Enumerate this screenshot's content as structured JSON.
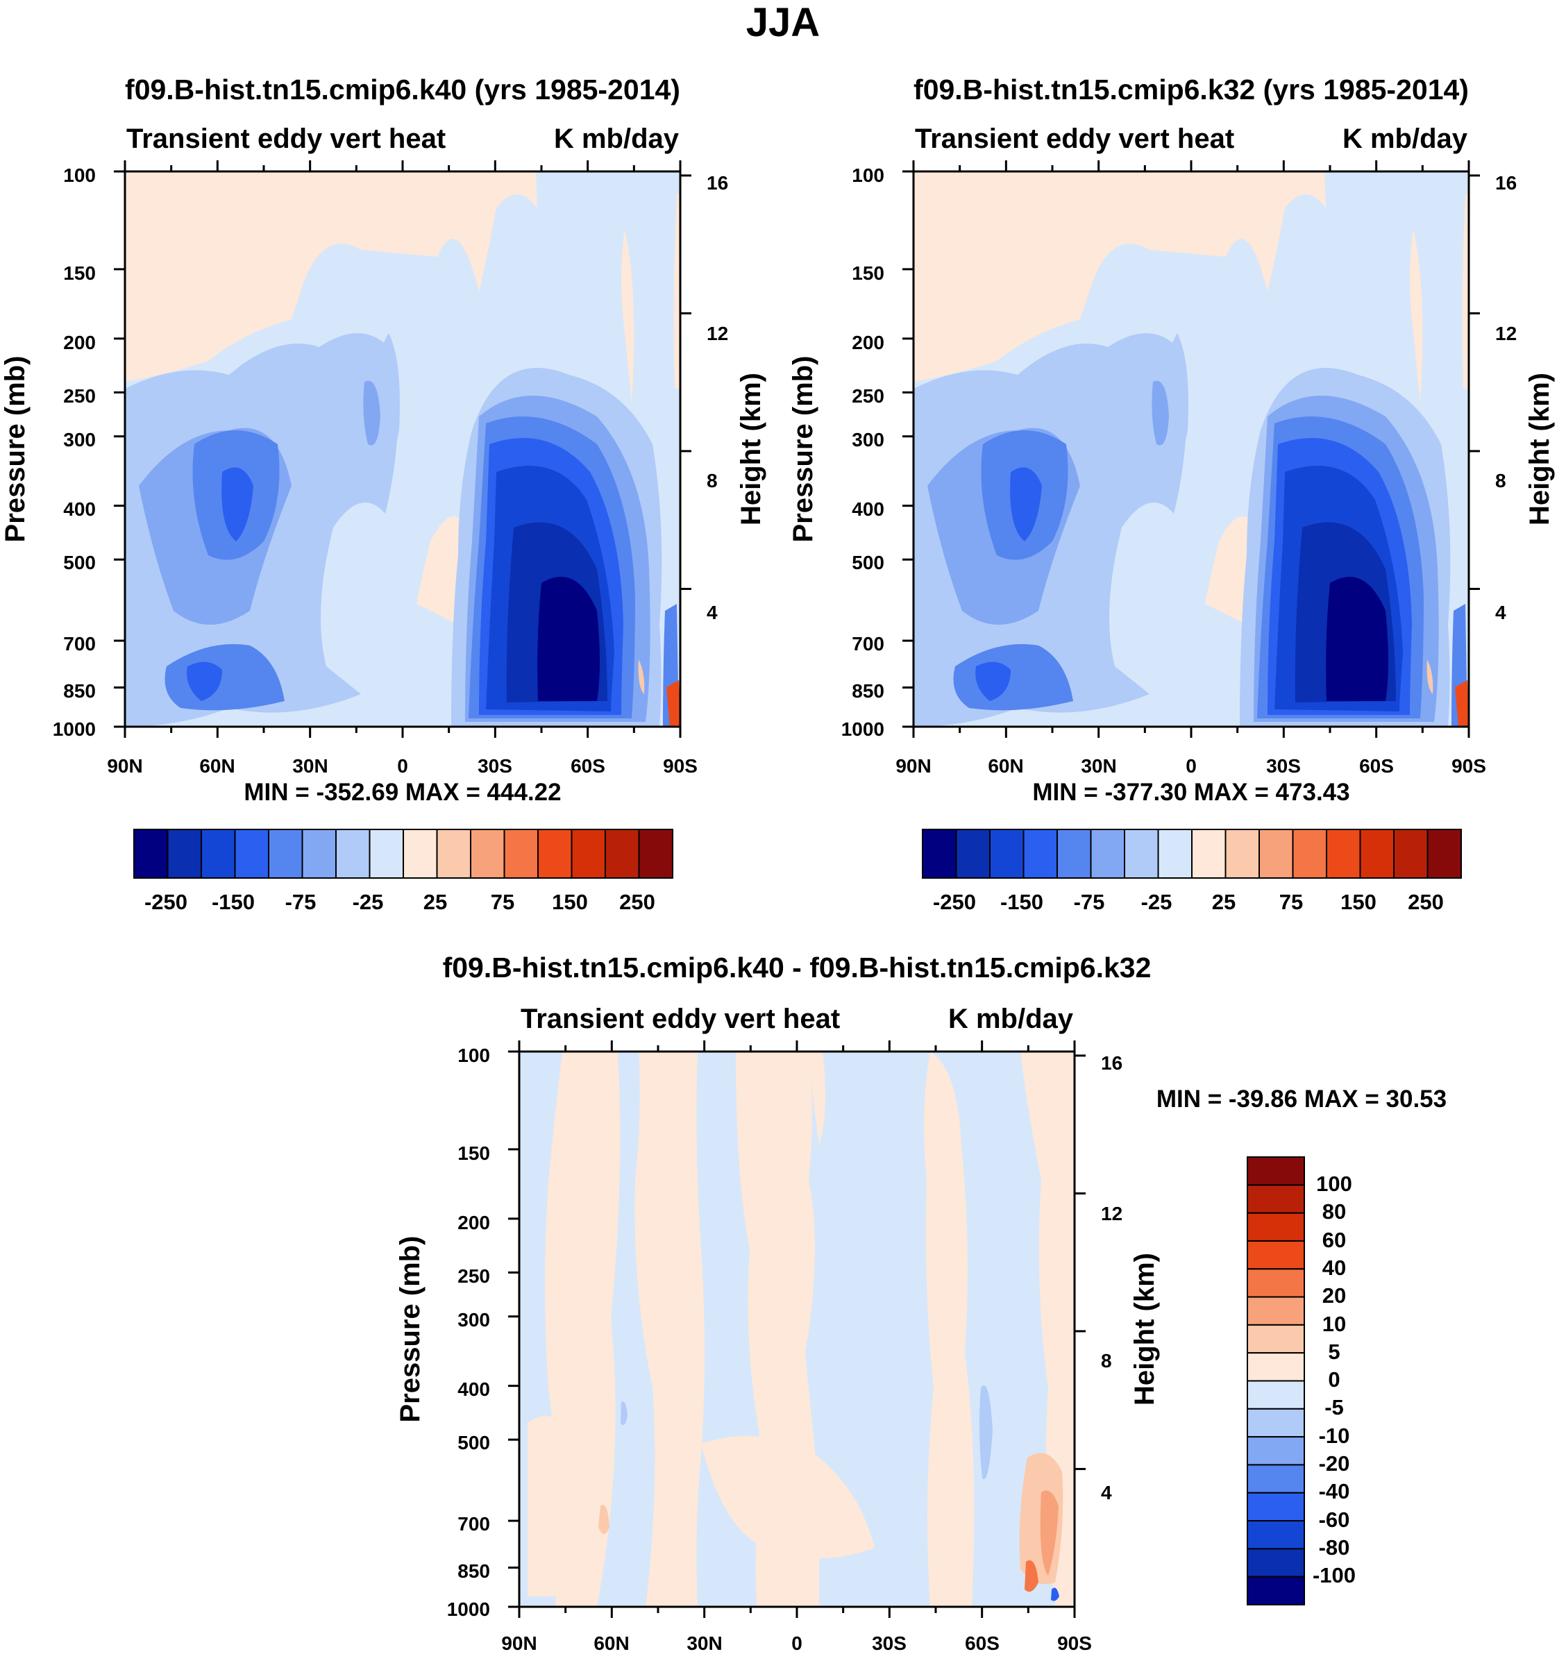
{
  "figure_title": "JJA",
  "colors": {
    "panel_scale": [
      "#000080",
      "#0a2fb0",
      "#1446d6",
      "#2a5ff0",
      "#5585ef",
      "#82a8f4",
      "#b1cbf8",
      "#d6e7fb",
      "#fde8d9",
      "#fbc9ab",
      "#f7a27a",
      "#f47646",
      "#ec4b19",
      "#d63008",
      "#b82108",
      "#870a0a"
    ],
    "diff_scale": [
      "#000080",
      "#0a2fb0",
      "#1446d6",
      "#2a5ff0",
      "#5585ef",
      "#82a8f4",
      "#b1cbf8",
      "#d6e7fb",
      "#fde8d9",
      "#fbc9ab",
      "#f7a27a",
      "#f47646",
      "#ec4b19",
      "#d63008",
      "#b82108",
      "#870a0a"
    ]
  },
  "chart_data": [
    {
      "type": "contour",
      "title": "f09.B-hist.tn15.cmip6.k40 (yrs 1985-2014)",
      "left_string": "Transient eddy vert heat",
      "right_string": "K mb/day",
      "xlabel": "",
      "ylabel": "Pressure (mb)",
      "y2label": "Height (km)",
      "x_ticks": [
        "90N",
        "60N",
        "30N",
        "0",
        "30S",
        "60S",
        "90S"
      ],
      "xlim": [
        90,
        -90
      ],
      "y_ticks": [
        100,
        150,
        200,
        250,
        300,
        400,
        500,
        700,
        850,
        1000
      ],
      "ylim": [
        100,
        1000
      ],
      "y2_ticks": [
        16,
        12,
        8,
        4
      ],
      "min_max": "MIN = -352.69   MAX = 444.22",
      "levels": [
        -300,
        -250,
        -200,
        -150,
        -100,
        -75,
        -50,
        -25,
        0,
        25,
        50,
        75,
        100,
        150,
        200,
        250,
        300
      ],
      "colorbar_labels": [
        "-250",
        "-150",
        "-75",
        "-25",
        "25",
        "75",
        "150",
        "250"
      ],
      "min": -352.69,
      "max": 444.22
    },
    {
      "type": "contour",
      "title": "f09.B-hist.tn15.cmip6.k32 (yrs 1985-2014)",
      "left_string": "Transient eddy vert heat",
      "right_string": "K mb/day",
      "xlabel": "",
      "ylabel": "Pressure (mb)",
      "y2label": "Height (km)",
      "x_ticks": [
        "90N",
        "60N",
        "30N",
        "0",
        "30S",
        "60S",
        "90S"
      ],
      "xlim": [
        90,
        -90
      ],
      "y_ticks": [
        100,
        150,
        200,
        250,
        300,
        400,
        500,
        700,
        850,
        1000
      ],
      "ylim": [
        100,
        1000
      ],
      "y2_ticks": [
        16,
        12,
        8,
        4
      ],
      "min_max": "MIN = -377.30   MAX = 473.43",
      "levels": [
        -300,
        -250,
        -200,
        -150,
        -100,
        -75,
        -50,
        -25,
        0,
        25,
        50,
        75,
        100,
        150,
        200,
        250,
        300
      ],
      "colorbar_labels": [
        "-250",
        "-150",
        "-75",
        "-25",
        "25",
        "75",
        "150",
        "250"
      ],
      "min": -377.3,
      "max": 473.43
    },
    {
      "type": "contour",
      "title": "f09.B-hist.tn15.cmip6.k40 - f09.B-hist.tn15.cmip6.k32",
      "left_string": "Transient eddy vert heat",
      "right_string": "K mb/day",
      "xlabel": "",
      "ylabel": "Pressure (mb)",
      "y2label": "Height (km)",
      "x_ticks": [
        "90N",
        "60N",
        "30N",
        "0",
        "30S",
        "60S",
        "90S"
      ],
      "xlim": [
        90,
        -90
      ],
      "y_ticks": [
        100,
        150,
        200,
        250,
        300,
        400,
        500,
        700,
        850,
        1000
      ],
      "ylim": [
        100,
        1000
      ],
      "y2_ticks": [
        16,
        12,
        8,
        4
      ],
      "min_max": "MIN = -39.86   MAX =  30.53",
      "levels": [
        -100,
        -80,
        -60,
        -40,
        -20,
        -10,
        -5,
        0,
        5,
        10,
        20,
        40,
        60,
        80,
        100
      ],
      "colorbar_labels": [
        "100",
        "80",
        "60",
        "40",
        "20",
        "10",
        "5",
        "0",
        "-5",
        "-10",
        "-20",
        "-40",
        "-60",
        "-80",
        "-100"
      ],
      "min": -39.86,
      "max": 30.53
    }
  ]
}
